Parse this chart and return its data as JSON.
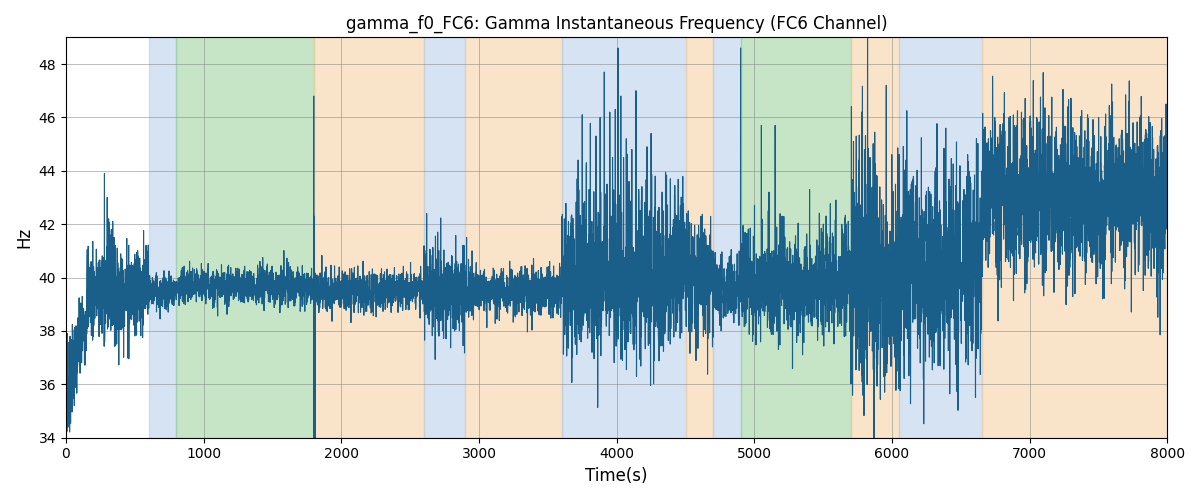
{
  "title": "gamma_f0_FC6: Gamma Instantaneous Frequency (FC6 Channel)",
  "xlabel": "Time(s)",
  "ylabel": "Hz",
  "xlim": [
    0,
    8000
  ],
  "ylim": [
    34,
    49
  ],
  "yticks": [
    34,
    36,
    38,
    40,
    42,
    44,
    46,
    48
  ],
  "xticks": [
    0,
    1000,
    2000,
    3000,
    4000,
    5000,
    6000,
    7000,
    8000
  ],
  "line_color": "#1a5f8a",
  "line_width": 0.8,
  "bg_regions": [
    {
      "xmin": 600,
      "xmax": 800,
      "color": "#adc9e8",
      "alpha": 0.5
    },
    {
      "xmin": 800,
      "xmax": 1800,
      "color": "#8ecc8e",
      "alpha": 0.5
    },
    {
      "xmin": 1800,
      "xmax": 2600,
      "color": "#f5ca96",
      "alpha": 0.5
    },
    {
      "xmin": 2600,
      "xmax": 2900,
      "color": "#adc9e8",
      "alpha": 0.5
    },
    {
      "xmin": 2900,
      "xmax": 3600,
      "color": "#f5ca96",
      "alpha": 0.5
    },
    {
      "xmin": 3600,
      "xmax": 4500,
      "color": "#adc9e8",
      "alpha": 0.5
    },
    {
      "xmin": 4500,
      "xmax": 4700,
      "color": "#f5ca96",
      "alpha": 0.5
    },
    {
      "xmin": 4700,
      "xmax": 4900,
      "color": "#adc9e8",
      "alpha": 0.5
    },
    {
      "xmin": 4900,
      "xmax": 5700,
      "color": "#8ecc8e",
      "alpha": 0.5
    },
    {
      "xmin": 5700,
      "xmax": 6050,
      "color": "#f5ca96",
      "alpha": 0.5
    },
    {
      "xmin": 6050,
      "xmax": 6650,
      "color": "#adc9e8",
      "alpha": 0.5
    },
    {
      "xmin": 6650,
      "xmax": 8100,
      "color": "#f5ca96",
      "alpha": 0.5
    }
  ]
}
